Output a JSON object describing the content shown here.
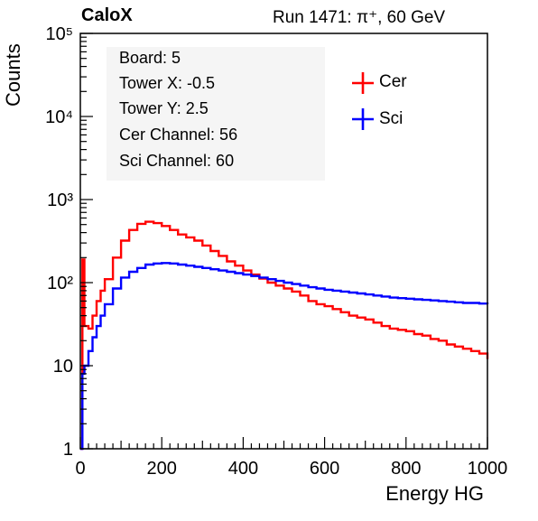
{
  "header": {
    "brand": "CaloX",
    "run_info": "Run 1471:   π⁺, 60 GeV"
  },
  "info_box": {
    "lines": [
      "Board: 5",
      "Tower X: -0.5",
      "Tower Y: 2.5",
      "Cer Channel: 56",
      "Sci Channel: 60"
    ]
  },
  "colors": {
    "cer": "#ff0000",
    "sci": "#0000ff",
    "info_box_bg": "#f5f5f5"
  },
  "chart_data": {
    "type": "line",
    "title": "",
    "xlabel": "Energy HG",
    "ylabel": "Counts",
    "xlim": [
      0,
      1000
    ],
    "ylim": [
      1,
      100000
    ],
    "yscale": "log",
    "x_ticks": [
      0,
      200,
      400,
      600,
      800,
      1000
    ],
    "x_tick_labels": [
      "0",
      "200",
      "400",
      "600",
      "800",
      "1000"
    ],
    "y_ticks": [
      1,
      10,
      100,
      1000,
      10000,
      100000
    ],
    "y_tick_labels": [
      "1",
      "10",
      "10²",
      "10³",
      "10⁴",
      "10⁵"
    ],
    "grid": false,
    "legend_position": "top-right",
    "series": [
      {
        "name": "Cer",
        "color": "#ff0000",
        "x": [
          0,
          5,
          10,
          20,
          30,
          40,
          50,
          60,
          80,
          100,
          120,
          140,
          160,
          180,
          200,
          220,
          240,
          260,
          280,
          300,
          320,
          340,
          360,
          380,
          400,
          420,
          440,
          460,
          480,
          500,
          520,
          540,
          560,
          580,
          600,
          620,
          640,
          660,
          680,
          700,
          720,
          740,
          760,
          780,
          800,
          820,
          840,
          860,
          880,
          900,
          920,
          940,
          960,
          980,
          1000
        ],
        "values": [
          1,
          190,
          30,
          28,
          40,
          60,
          80,
          110,
          200,
          320,
          430,
          510,
          540,
          520,
          480,
          430,
          380,
          350,
          320,
          280,
          240,
          210,
          180,
          160,
          140,
          125,
          112,
          100,
          92,
          85,
          78,
          70,
          60,
          55,
          52,
          48,
          44,
          40,
          38,
          36,
          33,
          30,
          28,
          27,
          26,
          24,
          23,
          21,
          20,
          18,
          17,
          16,
          15,
          14,
          12
        ]
      },
      {
        "name": "Sci",
        "color": "#0000ff",
        "x": [
          0,
          5,
          10,
          20,
          30,
          40,
          50,
          60,
          80,
          100,
          120,
          140,
          160,
          180,
          200,
          220,
          240,
          260,
          280,
          300,
          320,
          340,
          360,
          380,
          400,
          420,
          440,
          460,
          480,
          500,
          520,
          540,
          560,
          580,
          600,
          620,
          640,
          660,
          680,
          700,
          720,
          740,
          760,
          780,
          800,
          820,
          840,
          860,
          880,
          900,
          920,
          940,
          960,
          980,
          1000
        ],
        "values": [
          1,
          8,
          10,
          15,
          22,
          30,
          40,
          55,
          85,
          115,
          135,
          150,
          165,
          170,
          172,
          170,
          165,
          160,
          155,
          150,
          145,
          140,
          135,
          130,
          125,
          120,
          115,
          110,
          105,
          100,
          96,
          92,
          88,
          85,
          82,
          80,
          78,
          76,
          74,
          72,
          70,
          68,
          66,
          65,
          64,
          63,
          62,
          61,
          60,
          59,
          58,
          57,
          57,
          56,
          55
        ]
      }
    ]
  }
}
